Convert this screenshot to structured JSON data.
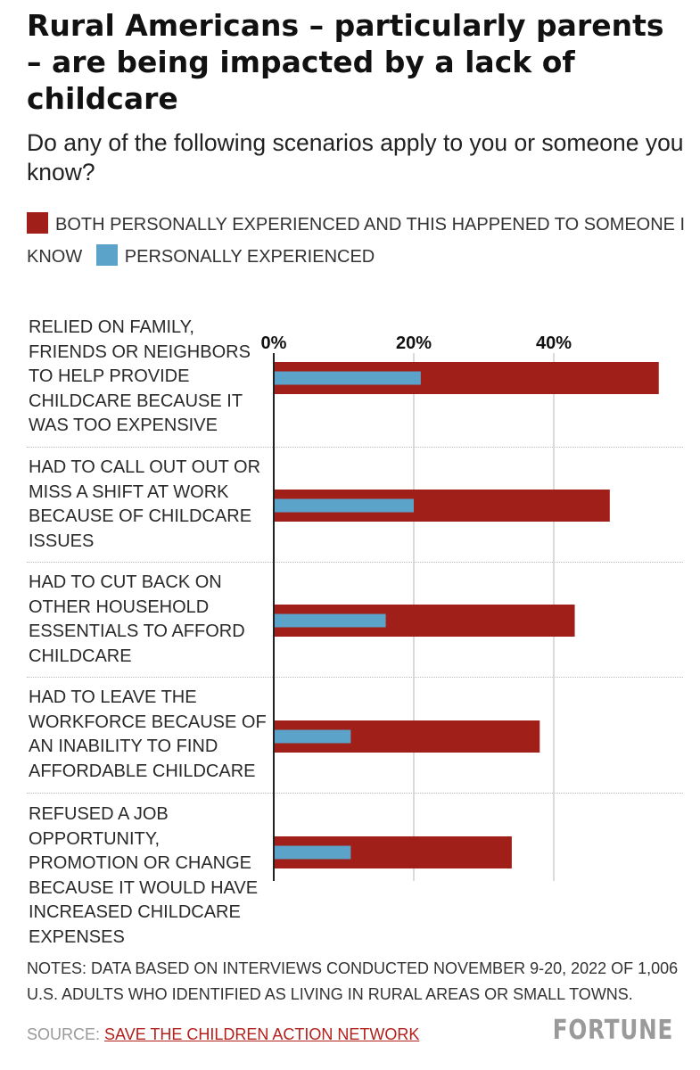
{
  "title": "Rural Americans – particularly parents – are being impacted by a lack of childcare",
  "subtitle": "Do any of the following scenarios apply to you or someone you know?",
  "notes": "NOTES: DATA BASED ON INTERVIEWS CONDUCTED NOVEMBER 9-20, 2022 OF 1,006 U.S. ADULTS WHO IDENTIFIED AS LIVING IN RURAL AREAS OR SMALL TOWNS.",
  "source_prefix": "SOURCE: ",
  "source_link": "SAVE THE CHILDREN ACTION NETWORK",
  "logo": "FORTUNE",
  "colors": {
    "both": "#a01f18",
    "personal": "#5ba3c9",
    "grid": "#cfcfcf",
    "axis": "#222222"
  },
  "chart_data": {
    "type": "bar",
    "orientation": "horizontal",
    "title": "Rural Americans – particularly parents – are being impacted by a lack of childcare",
    "subtitle": "Do any of the following scenarios apply to you or someone you know?",
    "categories": [
      "RELIED ON FAMILY, FRIENDS OR NEIGHBORS TO HELP PROVIDE CHILDCARE BECAUSE IT WAS TOO EXPENSIVE",
      "HAD TO CALL OUT OUT OR MISS A SHIFT AT WORK BECAUSE OF CHILDCARE ISSUES",
      "HAD TO CUT BACK ON OTHER HOUSEHOLD ESSENTIALS TO AFFORD CHILDCARE",
      "HAD TO LEAVE THE WORKFORCE BECAUSE OF AN INABILITY TO FIND AFFORDABLE CHILDCARE",
      "REFUSED A JOB OPPORTUNITY, PROMOTION OR CHANGE BECAUSE IT WOULD HAVE INCREASED CHILDCARE EXPENSES"
    ],
    "series": [
      {
        "name": "BOTH PERSONALLY EXPERIENCED AND THIS HAPPENED TO SOMEONE I KNOW",
        "color": "#a01f18",
        "values": [
          55,
          48,
          43,
          38,
          34
        ]
      },
      {
        "name": "PERSONALLY EXPERIENCED",
        "color": "#5ba3c9",
        "values": [
          21,
          20,
          16,
          11,
          11
        ]
      }
    ],
    "xlim": [
      0,
      55
    ],
    "xticks": [
      0,
      20,
      40
    ],
    "xtick_labels": [
      "0%",
      "20%",
      "40%"
    ],
    "xlabel": "",
    "ylabel": "",
    "grid": true,
    "legend_position": "top"
  }
}
